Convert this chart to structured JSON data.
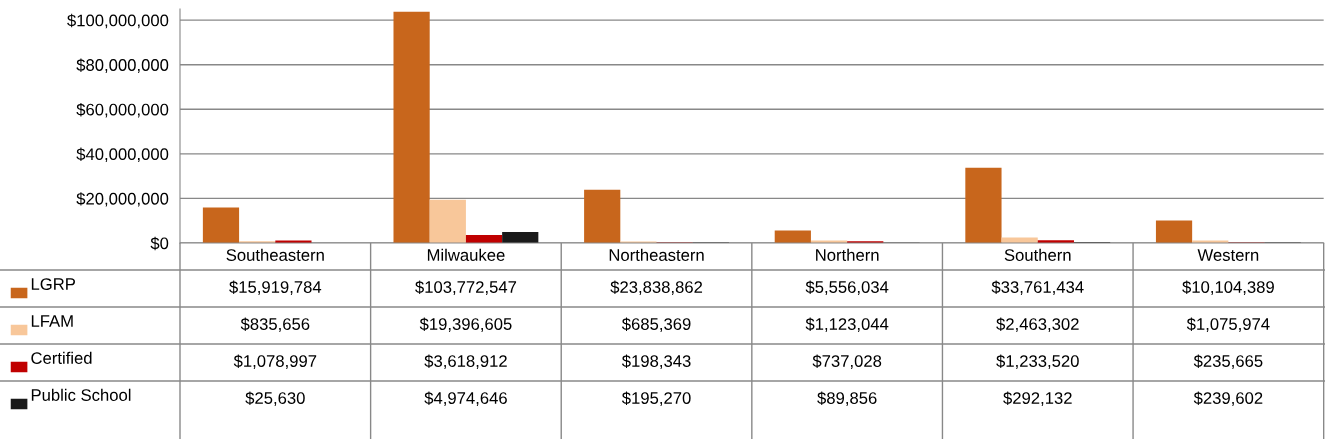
{
  "chart_data": {
    "type": "bar",
    "categories": [
      "Southeastern",
      "Milwaukee",
      "Northeastern",
      "Northern",
      "Southern",
      "Western"
    ],
    "series": [
      {
        "name": "LGRP",
        "color": "#c8661c",
        "values": [
          15919784,
          103772547,
          23838862,
          5556034,
          33761434,
          10104389
        ],
        "value_labels": [
          "$15,919,784",
          "$103,772,547",
          "$23,838,862",
          "$5,556,034",
          "$33,761,434",
          "$10,104,389"
        ]
      },
      {
        "name": "LFAM",
        "color": "#f8c79a",
        "values": [
          835656,
          19396605,
          685369,
          1123044,
          2463302,
          1075974
        ],
        "value_labels": [
          "$835,656",
          "$19,396,605",
          "$685,369",
          "$1,123,044",
          "$2,463,302",
          "$1,075,974"
        ]
      },
      {
        "name": "Certified",
        "color": "#c00000",
        "values": [
          1078997,
          3618912,
          198343,
          737028,
          1233520,
          235665
        ],
        "value_labels": [
          "$1,078,997",
          "$3,618,912",
          "$198,343",
          "$737,028",
          "$1,233,520",
          "$235,665"
        ]
      },
      {
        "name": "Public School",
        "color": "#1a1a1a",
        "values": [
          25630,
          4974646,
          195270,
          89856,
          292132,
          239602
        ],
        "value_labels": [
          "$25,630",
          "$4,974,646",
          "$195,270",
          "$89,856",
          "$292,132",
          "$239,602"
        ]
      }
    ],
    "ylim": [
      0,
      105000000
    ],
    "yticks": [
      {
        "value": 0,
        "label": "$0"
      },
      {
        "value": 20000000,
        "label": "$20,000,000"
      },
      {
        "value": 40000000,
        "label": "$40,000,000"
      },
      {
        "value": 60000000,
        "label": "$60,000,000"
      },
      {
        "value": 80000000,
        "label": "$80,000,000"
      },
      {
        "value": 100000000,
        "label": "$100,000,000"
      }
    ],
    "grid": "y",
    "legend": "left"
  }
}
